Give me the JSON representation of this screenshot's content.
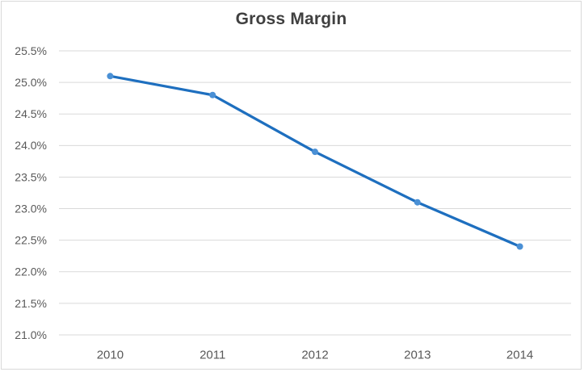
{
  "chart_data": {
    "type": "line",
    "title": "Gross Margin",
    "categories": [
      "2010",
      "2011",
      "2012",
      "2013",
      "2014"
    ],
    "series": [
      {
        "name": "Gross Margin",
        "values": [
          25.1,
          24.8,
          23.9,
          23.1,
          22.4
        ]
      }
    ],
    "xlabel": "",
    "ylabel": "",
    "ylim": [
      21.0,
      25.5
    ],
    "y_tick_step": 0.5,
    "y_ticks": [
      {
        "value": 25.5,
        "label": "25.5%"
      },
      {
        "value": 25.0,
        "label": "25.0%"
      },
      {
        "value": 24.5,
        "label": "24.5%"
      },
      {
        "value": 24.0,
        "label": "24.0%"
      },
      {
        "value": 23.5,
        "label": "23.5%"
      },
      {
        "value": 23.0,
        "label": "23.0%"
      },
      {
        "value": 22.5,
        "label": "22.5%"
      },
      {
        "value": 22.0,
        "label": "22.0%"
      },
      {
        "value": 21.5,
        "label": "21.5%"
      },
      {
        "value": 21.0,
        "label": "21.0%"
      }
    ],
    "grid": true,
    "legend": "none",
    "colors": {
      "line": "#1e6fbf",
      "marker": "#4a90d5",
      "gridline": "#d9d9d9",
      "title": "#404040",
      "axis_labels": "#595959",
      "border": "#d9d9d9",
      "background": "#ffffff"
    }
  }
}
